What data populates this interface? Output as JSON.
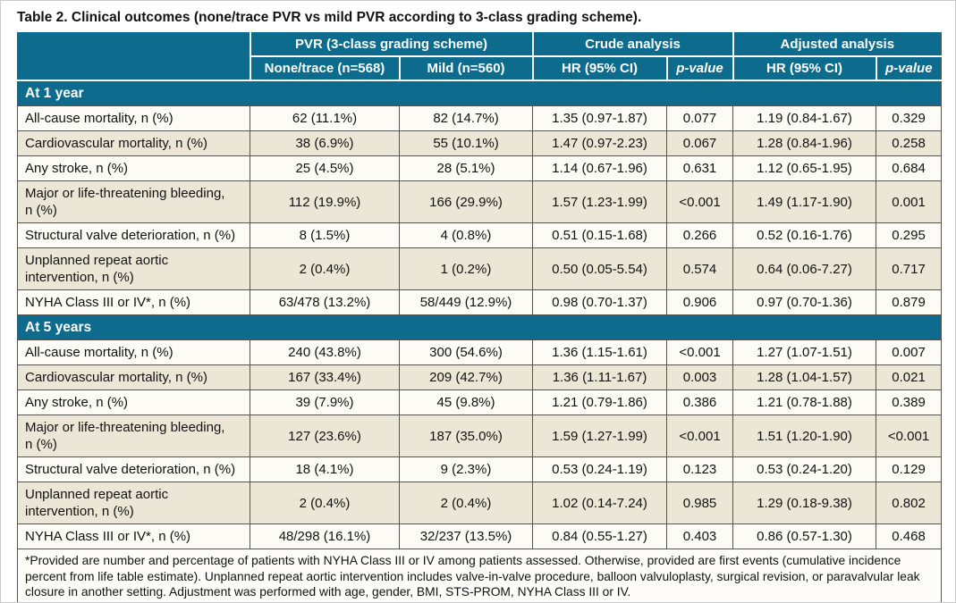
{
  "title": "Table 2. Clinical outcomes (none/trace PVR vs mild PVR according to 3-class grading scheme).",
  "colors": {
    "header-teal": "#0d6c8e",
    "row-beige": "#ebe6d5",
    "row-white": "#fcfbf5",
    "border-dark": "#55544e"
  },
  "table": {
    "col_groups": [
      {
        "label": "",
        "span": 1
      },
      {
        "label": "PVR (3-class grading scheme)",
        "span": 2
      },
      {
        "label": "Crude analysis",
        "span": 2
      },
      {
        "label": "Adjusted analysis",
        "span": 2
      }
    ],
    "sub_headers": [
      "None/trace (n=568)",
      "Mild (n=560)",
      "HR (95% CI)",
      "p-value",
      "HR (95% CI)",
      "p-value"
    ],
    "sections": [
      {
        "label": "At 1 year",
        "rows": [
          {
            "label": "All-cause mortality, n (%)",
            "cells": [
              "62 (11.1%)",
              "82 (14.7%)",
              "1.35 (0.97-1.87)",
              "0.077",
              "1.19 (0.84-1.67)",
              "0.329"
            ]
          },
          {
            "label": "Cardiovascular mortality, n (%)",
            "cells": [
              "38 (6.9%)",
              "55 (10.1%)",
              "1.47 (0.97-2.23)",
              "0.067",
              "1.28 (0.84-1.96)",
              "0.258"
            ]
          },
          {
            "label": "Any stroke, n (%)",
            "cells": [
              "25 (4.5%)",
              "28 (5.1%)",
              "1.14 (0.67-1.96)",
              "0.631",
              "1.12 (0.65-1.95)",
              "0.684"
            ]
          },
          {
            "label": "Major or life-threatening bleeding,\nn (%)",
            "cells": [
              "112 (19.9%)",
              "166 (29.9%)",
              "1.57 (1.23-1.99)",
              "<0.001",
              "1.49 (1.17-1.90)",
              "0.001"
            ]
          },
          {
            "label": "Structural valve deterioration, n (%)",
            "cells": [
              "8 (1.5%)",
              "4 (0.8%)",
              "0.51 (0.15-1.68)",
              "0.266",
              "0.52 (0.16-1.76)",
              "0.295"
            ]
          },
          {
            "label": "Unplanned repeat aortic\nintervention, n (%)",
            "cells": [
              "2 (0.4%)",
              "1 (0.2%)",
              "0.50 (0.05-5.54)",
              "0.574",
              "0.64 (0.06-7.27)",
              "0.717"
            ]
          },
          {
            "label": "NYHA Class III or IV*, n (%)",
            "cells": [
              "63/478 (13.2%)",
              "58/449 (12.9%)",
              "0.98 (0.70-1.37)",
              "0.906",
              "0.97 (0.70-1.36)",
              "0.879"
            ]
          }
        ]
      },
      {
        "label": "At 5 years",
        "rows": [
          {
            "label": "All-cause mortality, n (%)",
            "cells": [
              "240 (43.8%)",
              "300 (54.6%)",
              "1.36 (1.15-1.61)",
              "<0.001",
              "1.27 (1.07-1.51)",
              "0.007"
            ]
          },
          {
            "label": "Cardiovascular mortality, n (%)",
            "cells": [
              "167 (33.4%)",
              "209 (42.7%)",
              "1.36 (1.11-1.67)",
              "0.003",
              "1.28 (1.04-1.57)",
              "0.021"
            ]
          },
          {
            "label": "Any stroke, n (%)",
            "cells": [
              "39 (7.9%)",
              "45 (9.8%)",
              "1.21 (0.79-1.86)",
              "0.386",
              "1.21 (0.78-1.88)",
              "0.389"
            ]
          },
          {
            "label": "Major or life-threatening bleeding,\nn (%)",
            "cells": [
              "127 (23.6%)",
              "187 (35.0%)",
              "1.59 (1.27-1.99)",
              "<0.001",
              "1.51 (1.20-1.90)",
              "<0.001"
            ]
          },
          {
            "label": "Structural valve deterioration, n (%)",
            "cells": [
              "18 (4.1%)",
              "9 (2.3%)",
              "0.53 (0.24-1.19)",
              "0.123",
              "0.53 (0.24-1.20)",
              "0.129"
            ]
          },
          {
            "label": "Unplanned repeat aortic\nintervention, n (%)",
            "cells": [
              "2 (0.4%)",
              "2 (0.4%)",
              "1.02 (0.14-7.24)",
              "0.985",
              "1.29 (0.18-9.38)",
              "0.802"
            ]
          },
          {
            "label": "NYHA Class III or IV*, n (%)",
            "cells": [
              "48/298 (16.1%)",
              "32/237 (13.5%)",
              "0.84 (0.55-1.27)",
              "0.403",
              "0.86 (0.57-1.30)",
              "0.468"
            ]
          }
        ]
      }
    ],
    "footnote": "*Provided are number and percentage of patients with NYHA Class III or IV among patients assessed. Otherwise, provided are first events (cumulative incidence percent from life table estimate). Unplanned repeat aortic intervention includes valve-in-valve procedure, balloon valvuloplasty, surgical revision, or paravalvular leak closure in another setting. Adjustment was performed with age, gender, BMI, STS-PROM, NYHA Class III or IV."
  }
}
